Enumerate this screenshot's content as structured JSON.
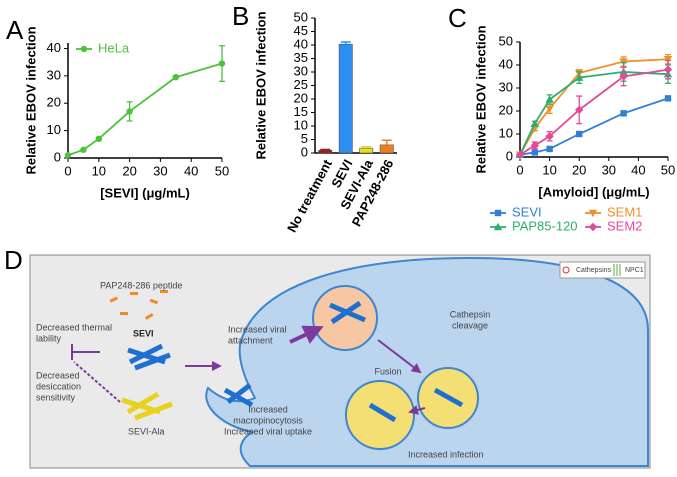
{
  "chart_data": [
    {
      "type": "line",
      "panel": "A",
      "ylabel": "Relative EBOV infection",
      "xlabel": "[SEVI] (μg/mL)",
      "x": [
        0,
        5,
        10,
        20,
        35,
        50
      ],
      "xlim": [
        0,
        50
      ],
      "xticks": [
        0,
        10,
        20,
        30,
        40,
        50
      ],
      "ylim": [
        0,
        42
      ],
      "yticks": [
        0,
        10,
        20,
        30,
        40
      ],
      "legend": "upper left",
      "series": [
        {
          "name": "HeLa",
          "color": "#4cc33b",
          "marker": "circle",
          "values": [
            1,
            3,
            7,
            17,
            29.5,
            34.5
          ],
          "errors": [
            0,
            0,
            0.5,
            3.5,
            0.5,
            6.5
          ]
        }
      ]
    },
    {
      "type": "bar",
      "panel": "B",
      "ylabel": "Relative EBOV infection",
      "categories": [
        "No treatment",
        "SEVI",
        "SEVI-Ala",
        "PAP248-286"
      ],
      "values": [
        1,
        40.3,
        1.8,
        3
      ],
      "errors": [
        0.3,
        0.8,
        0.5,
        1.7
      ],
      "colors": [
        "#a3161a",
        "#2b8ef0",
        "#e3e024",
        "#ee7d22"
      ],
      "ylim": [
        0,
        50
      ],
      "yticks": [
        0,
        5,
        10,
        15,
        20,
        25,
        30,
        35,
        40,
        45,
        50
      ]
    },
    {
      "type": "line",
      "panel": "C",
      "ylabel": "Relative EBOV infection",
      "xlabel": "[Amyloid] (μg/mL)",
      "x": [
        0,
        5,
        10,
        20,
        35,
        50
      ],
      "xlim": [
        0,
        50
      ],
      "xticks": [
        0,
        10,
        20,
        30,
        40,
        50
      ],
      "ylim": [
        0,
        50
      ],
      "yticks": [
        0,
        10,
        20,
        30,
        40,
        50
      ],
      "legend": "below",
      "series": [
        {
          "name": "SEVI",
          "color": "#2f7fd8",
          "marker": "square",
          "values": [
            1,
            2,
            3.5,
            10,
            19,
            25.5
          ],
          "errors": [
            0,
            0.3,
            0.5,
            0.5,
            0.5,
            0.5
          ]
        },
        {
          "name": "SEM1",
          "color": "#f0902a",
          "marker": "triangle-down",
          "values": [
            1,
            12.5,
            21,
            36.5,
            41.5,
            42.5
          ],
          "errors": [
            0,
            1,
            2,
            1.5,
            2,
            2
          ]
        },
        {
          "name": "PAP85-120",
          "color": "#2fae6e",
          "marker": "triangle",
          "values": [
            1,
            14.5,
            25,
            34.5,
            37,
            36
          ],
          "errors": [
            0,
            1,
            2,
            2.5,
            4,
            4
          ]
        },
        {
          "name": "SEM2",
          "color": "#e24a9a",
          "marker": "diamond",
          "values": [
            1,
            5,
            9,
            20.5,
            35,
            38
          ],
          "errors": [
            0,
            1.5,
            2,
            6,
            4,
            4
          ]
        }
      ]
    }
  ],
  "diagram": {
    "panel": "D",
    "peptide": "PAP248-286 peptide",
    "thermal": [
      "Decreased thermal",
      "lability"
    ],
    "desiccation": [
      "Decreased",
      "desiccation",
      "sensitivity"
    ],
    "sevi": "SEVI",
    "sevi_ala": "SEVI-Ala",
    "attachment": [
      "Increased viral",
      "attachment"
    ],
    "uptake": [
      "Increased",
      "macropinocytosis",
      "Increased viral uptake"
    ],
    "cleavage": [
      "Cathepsin",
      "cleavage"
    ],
    "fusion": "Fusion",
    "infection": "Increased infection",
    "key": [
      "Cathepsins",
      "NPC1"
    ]
  }
}
